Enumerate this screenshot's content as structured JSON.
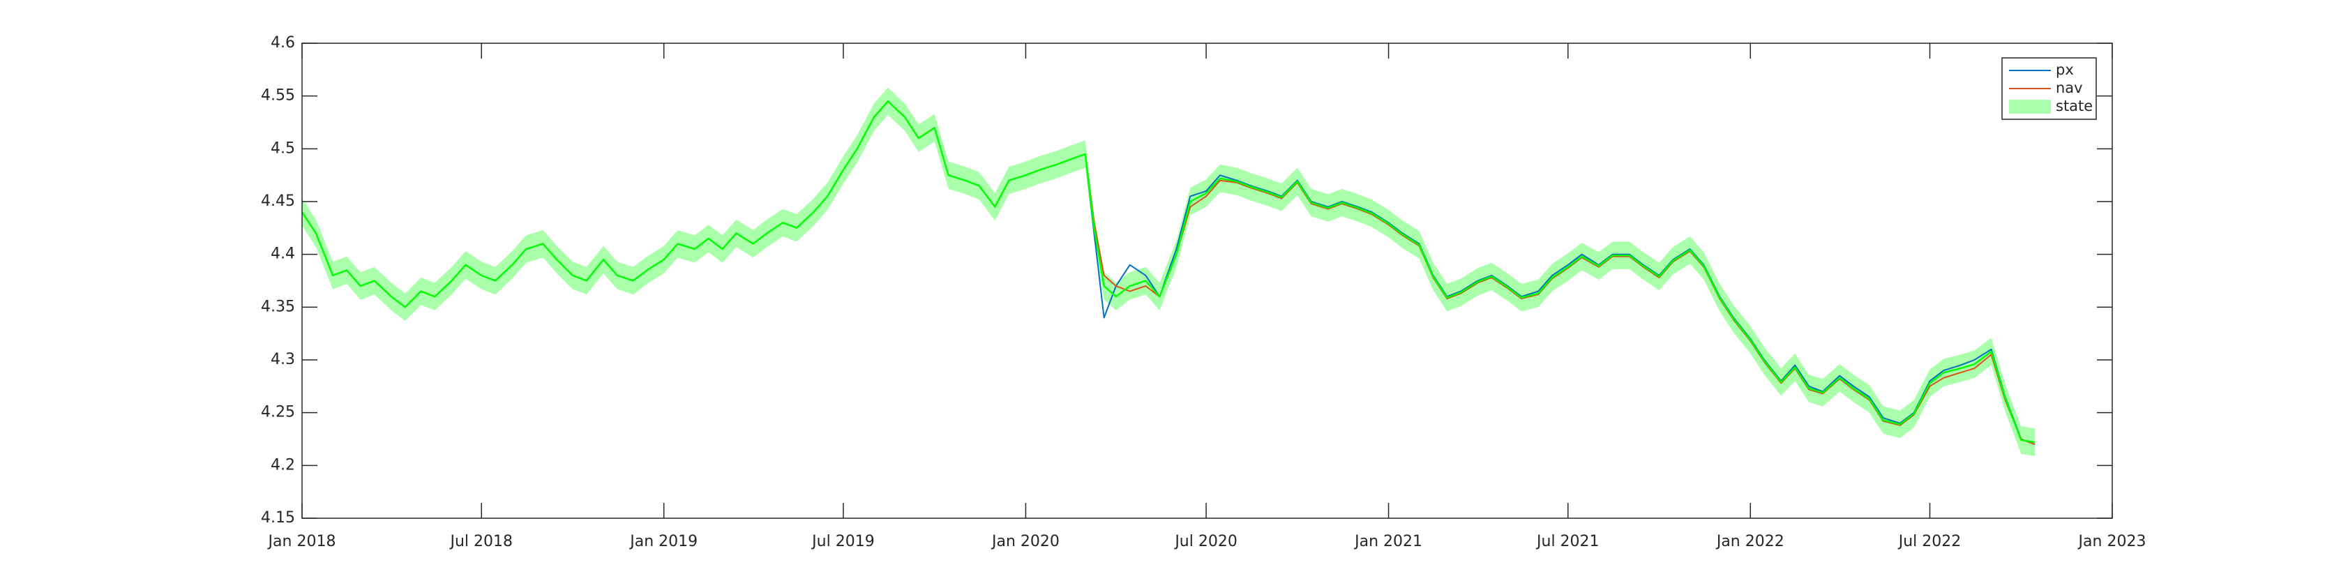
{
  "chart_data": {
    "type": "line",
    "title": "",
    "xlabel": "",
    "ylabel": "",
    "xlim": [
      "2018-01-01",
      "2023-01-01"
    ],
    "ylim": [
      4.15,
      4.6
    ],
    "x_ticks": [
      "2018-01-01",
      "2018-07-01",
      "2019-01-01",
      "2019-07-01",
      "2020-01-01",
      "2020-07-01",
      "2021-01-01",
      "2021-07-01",
      "2022-01-01",
      "2022-07-01",
      "2023-01-01"
    ],
    "x_tick_labels": [
      "Jan 2018",
      "Jul 2018",
      "Jan 2019",
      "Jul 2019",
      "Jan 2020",
      "Jul 2020",
      "Jan 2021",
      "Jul 2021",
      "Jan 2022",
      "Jul 2022",
      "Jan 2023"
    ],
    "y_ticks": [
      4.15,
      4.2,
      4.25,
      4.3,
      4.35,
      4.4,
      4.45,
      4.5,
      4.55,
      4.6
    ],
    "y_tick_labels": [
      "4.15",
      "4.2",
      "4.25",
      "4.3",
      "4.35",
      "4.4",
      "4.45",
      "4.5",
      "4.55",
      "4.6"
    ],
    "grid": false,
    "legend_position": "top-right",
    "x": [
      "2018-01-01",
      "2018-01-15",
      "2018-02-01",
      "2018-02-15",
      "2018-03-01",
      "2018-03-15",
      "2018-04-01",
      "2018-04-15",
      "2018-05-01",
      "2018-05-15",
      "2018-06-01",
      "2018-06-15",
      "2018-07-01",
      "2018-07-15",
      "2018-08-01",
      "2018-08-15",
      "2018-09-01",
      "2018-09-15",
      "2018-10-01",
      "2018-10-15",
      "2018-11-01",
      "2018-11-15",
      "2018-12-01",
      "2018-12-15",
      "2019-01-01",
      "2019-01-15",
      "2019-02-01",
      "2019-02-15",
      "2019-03-01",
      "2019-03-15",
      "2019-04-01",
      "2019-04-15",
      "2019-05-01",
      "2019-05-15",
      "2019-06-01",
      "2019-06-15",
      "2019-07-01",
      "2019-07-15",
      "2019-08-01",
      "2019-08-15",
      "2019-09-01",
      "2019-09-15",
      "2019-10-01",
      "2019-10-15",
      "2019-11-01",
      "2019-11-15",
      "2019-12-01",
      "2019-12-15",
      "2020-01-01",
      "2020-01-15",
      "2020-02-01",
      "2020-02-15",
      "2020-03-01",
      "2020-03-10",
      "2020-03-20",
      "2020-04-01",
      "2020-04-15",
      "2020-05-01",
      "2020-05-15",
      "2020-06-01",
      "2020-06-15",
      "2020-07-01",
      "2020-07-15",
      "2020-08-01",
      "2020-08-15",
      "2020-09-01",
      "2020-09-15",
      "2020-10-01",
      "2020-10-15",
      "2020-11-01",
      "2020-11-15",
      "2020-12-01",
      "2020-12-15",
      "2021-01-01",
      "2021-01-15",
      "2021-02-01",
      "2021-02-15",
      "2021-03-01",
      "2021-03-15",
      "2021-04-01",
      "2021-04-15",
      "2021-05-01",
      "2021-05-15",
      "2021-06-01",
      "2021-06-15",
      "2021-07-01",
      "2021-07-15",
      "2021-08-01",
      "2021-08-15",
      "2021-09-01",
      "2021-09-15",
      "2021-10-01",
      "2021-10-15",
      "2021-11-01",
      "2021-11-15",
      "2021-12-01",
      "2021-12-15",
      "2022-01-01",
      "2022-01-15",
      "2022-02-01",
      "2022-02-15",
      "2022-03-01",
      "2022-03-15",
      "2022-04-01",
      "2022-04-15",
      "2022-05-01",
      "2022-05-15",
      "2022-06-01",
      "2022-06-15",
      "2022-07-01",
      "2022-07-15",
      "2022-08-01",
      "2022-08-15",
      "2022-09-01",
      "2022-09-15",
      "2022-10-01",
      "2022-10-15"
    ],
    "series": [
      {
        "name": "px",
        "color": "#0072BD",
        "values": [
          4.44,
          4.42,
          4.38,
          4.385,
          4.37,
          4.375,
          4.36,
          4.35,
          4.365,
          4.36,
          4.375,
          4.39,
          4.38,
          4.375,
          4.39,
          4.405,
          4.41,
          4.395,
          4.38,
          4.375,
          4.395,
          4.38,
          4.375,
          4.385,
          4.395,
          4.41,
          4.405,
          4.415,
          4.405,
          4.42,
          4.41,
          4.42,
          4.43,
          4.425,
          4.44,
          4.455,
          4.48,
          4.5,
          4.53,
          4.545,
          4.53,
          4.51,
          4.52,
          4.475,
          4.47,
          4.465,
          4.445,
          4.47,
          4.475,
          4.48,
          4.485,
          4.49,
          4.495,
          4.42,
          4.34,
          4.37,
          4.39,
          4.38,
          4.36,
          4.405,
          4.455,
          4.46,
          4.475,
          4.47,
          4.465,
          4.46,
          4.455,
          4.47,
          4.45,
          4.445,
          4.45,
          4.445,
          4.44,
          4.43,
          4.42,
          4.41,
          4.38,
          4.36,
          4.365,
          4.375,
          4.38,
          4.37,
          4.36,
          4.365,
          4.38,
          4.39,
          4.4,
          4.39,
          4.4,
          4.4,
          4.39,
          4.38,
          4.395,
          4.405,
          4.39,
          4.36,
          4.34,
          4.32,
          4.3,
          4.28,
          4.295,
          4.275,
          4.27,
          4.285,
          4.275,
          4.265,
          4.245,
          4.24,
          4.25,
          4.28,
          4.29,
          4.295,
          4.3,
          4.31,
          4.265,
          4.225,
          4.22
        ]
      },
      {
        "name": "nav",
        "color": "#D95319",
        "values": [
          4.44,
          4.42,
          4.38,
          4.385,
          4.37,
          4.375,
          4.36,
          4.35,
          4.365,
          4.36,
          4.375,
          4.39,
          4.38,
          4.375,
          4.39,
          4.405,
          4.41,
          4.395,
          4.38,
          4.375,
          4.395,
          4.38,
          4.375,
          4.385,
          4.395,
          4.41,
          4.405,
          4.415,
          4.405,
          4.42,
          4.41,
          4.42,
          4.43,
          4.425,
          4.44,
          4.455,
          4.48,
          4.5,
          4.53,
          4.545,
          4.53,
          4.51,
          4.52,
          4.475,
          4.47,
          4.465,
          4.445,
          4.47,
          4.475,
          4.48,
          4.485,
          4.49,
          4.495,
          4.43,
          4.38,
          4.37,
          4.365,
          4.37,
          4.36,
          4.4,
          4.445,
          4.455,
          4.47,
          4.468,
          4.463,
          4.458,
          4.453,
          4.468,
          4.448,
          4.443,
          4.448,
          4.443,
          4.438,
          4.428,
          4.418,
          4.408,
          4.378,
          4.358,
          4.363,
          4.373,
          4.378,
          4.368,
          4.358,
          4.362,
          4.377,
          4.387,
          4.397,
          4.388,
          4.398,
          4.398,
          4.388,
          4.378,
          4.393,
          4.403,
          4.388,
          4.358,
          4.338,
          4.318,
          4.298,
          4.278,
          4.292,
          4.272,
          4.268,
          4.282,
          4.272,
          4.262,
          4.242,
          4.238,
          4.248,
          4.275,
          4.283,
          4.288,
          4.292,
          4.305,
          4.262,
          4.225,
          4.22
        ]
      },
      {
        "name": "state",
        "color": "#00FF00",
        "band_color": "#AAFFAA",
        "band_halfwidth": 0.013,
        "values": [
          4.44,
          4.42,
          4.38,
          4.385,
          4.37,
          4.375,
          4.36,
          4.35,
          4.365,
          4.36,
          4.375,
          4.39,
          4.38,
          4.375,
          4.39,
          4.405,
          4.41,
          4.395,
          4.38,
          4.375,
          4.395,
          4.38,
          4.375,
          4.385,
          4.395,
          4.41,
          4.405,
          4.415,
          4.405,
          4.42,
          4.41,
          4.42,
          4.43,
          4.425,
          4.44,
          4.455,
          4.48,
          4.5,
          4.53,
          4.545,
          4.53,
          4.51,
          4.52,
          4.475,
          4.47,
          4.465,
          4.445,
          4.47,
          4.475,
          4.48,
          4.485,
          4.49,
          4.495,
          4.425,
          4.37,
          4.36,
          4.37,
          4.375,
          4.36,
          4.4,
          4.45,
          4.458,
          4.472,
          4.469,
          4.464,
          4.459,
          4.454,
          4.469,
          4.449,
          4.444,
          4.449,
          4.444,
          4.439,
          4.429,
          4.419,
          4.409,
          4.379,
          4.359,
          4.364,
          4.374,
          4.379,
          4.369,
          4.359,
          4.363,
          4.378,
          4.388,
          4.398,
          4.389,
          4.399,
          4.399,
          4.389,
          4.379,
          4.394,
          4.404,
          4.389,
          4.359,
          4.339,
          4.319,
          4.299,
          4.279,
          4.293,
          4.273,
          4.269,
          4.283,
          4.273,
          4.263,
          4.243,
          4.239,
          4.249,
          4.278,
          4.288,
          4.292,
          4.296,
          4.308,
          4.264,
          4.224,
          4.222
        ]
      }
    ]
  }
}
